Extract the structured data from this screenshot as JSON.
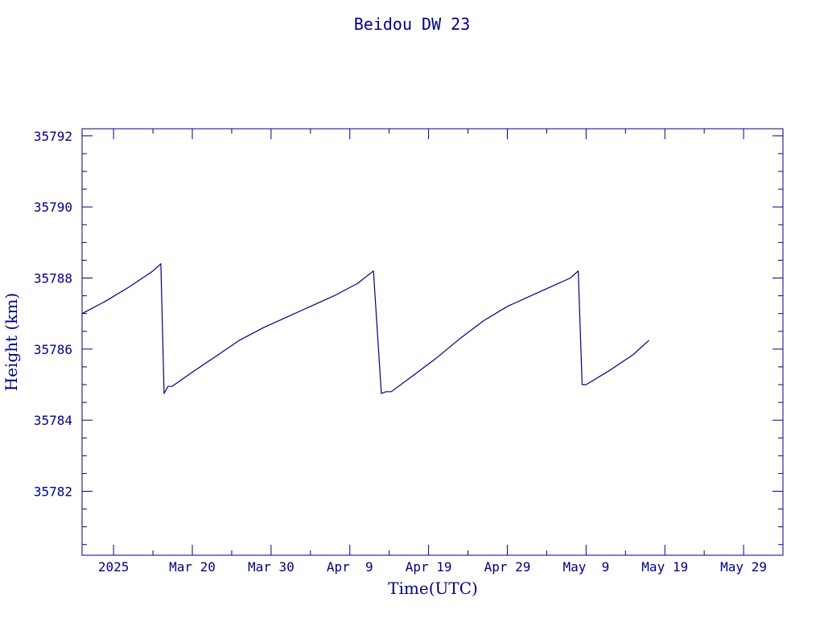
{
  "colors": {
    "ink": "#000080",
    "background": "#ffffff"
  },
  "chart_data": {
    "type": "line",
    "title": "Beidou DW 23",
    "xlabel": "Time(UTC)",
    "ylabel": "Height (km)",
    "xlim": [
      "2025-03-06",
      "2025-06-03"
    ],
    "ylim": [
      35780.2,
      35792.2
    ],
    "x_ticks": [
      {
        "date": "2025-03-10",
        "label": "2025"
      },
      {
        "date": "2025-03-20",
        "label": "Mar 20"
      },
      {
        "date": "2025-03-30",
        "label": "Mar 30"
      },
      {
        "date": "2025-04-09",
        "label": "Apr  9"
      },
      {
        "date": "2025-04-19",
        "label": "Apr 19"
      },
      {
        "date": "2025-04-29",
        "label": "Apr 29"
      },
      {
        "date": "2025-05-09",
        "label": "May  9"
      },
      {
        "date": "2025-05-19",
        "label": "May 19"
      },
      {
        "date": "2025-05-29",
        "label": "May 29"
      }
    ],
    "y_ticks": [
      35782,
      35784,
      35786,
      35788,
      35790,
      35792
    ],
    "grid": false,
    "series": [
      {
        "x": [
          "2025-03-06 00:00",
          "2025-03-09 00:00",
          "2025-03-12 00:00",
          "2025-03-15 00:00",
          "2025-03-16 00:00",
          "2025-03-16 10:00",
          "2025-03-16 22:00",
          "2025-03-17 10:00",
          "2025-03-20 00:00",
          "2025-03-23 00:00",
          "2025-03-26 00:00",
          "2025-03-29 00:00",
          "2025-04-01 00:00",
          "2025-04-04 00:00",
          "2025-04-07 00:00",
          "2025-04-10 00:00",
          "2025-04-12 00:00",
          "2025-04-13 00:00",
          "2025-04-13 14:00",
          "2025-04-14 06:00",
          "2025-04-17 00:00",
          "2025-04-20 00:00",
          "2025-04-23 00:00",
          "2025-04-26 00:00",
          "2025-04-29 00:00",
          "2025-05-02 00:00",
          "2025-05-05 00:00",
          "2025-05-07 00:00",
          "2025-05-08 00:00",
          "2025-05-08 12:00",
          "2025-05-09 00:00",
          "2025-05-12 00:00",
          "2025-05-15 00:00",
          "2025-05-17 00:00"
        ],
        "values": [
          35787.0,
          35787.35,
          35787.75,
          35788.2,
          35788.4,
          35784.75,
          35784.95,
          35784.95,
          35785.35,
          35785.8,
          35786.25,
          35786.6,
          35786.9,
          35787.2,
          35787.5,
          35787.85,
          35788.2,
          35784.75,
          35784.8,
          35784.8,
          35785.25,
          35785.75,
          35786.3,
          35786.8,
          35787.2,
          35787.5,
          35787.8,
          35788.0,
          35788.2,
          35785.0,
          35785.0,
          35785.4,
          35785.85,
          35786.25
        ]
      }
    ]
  }
}
